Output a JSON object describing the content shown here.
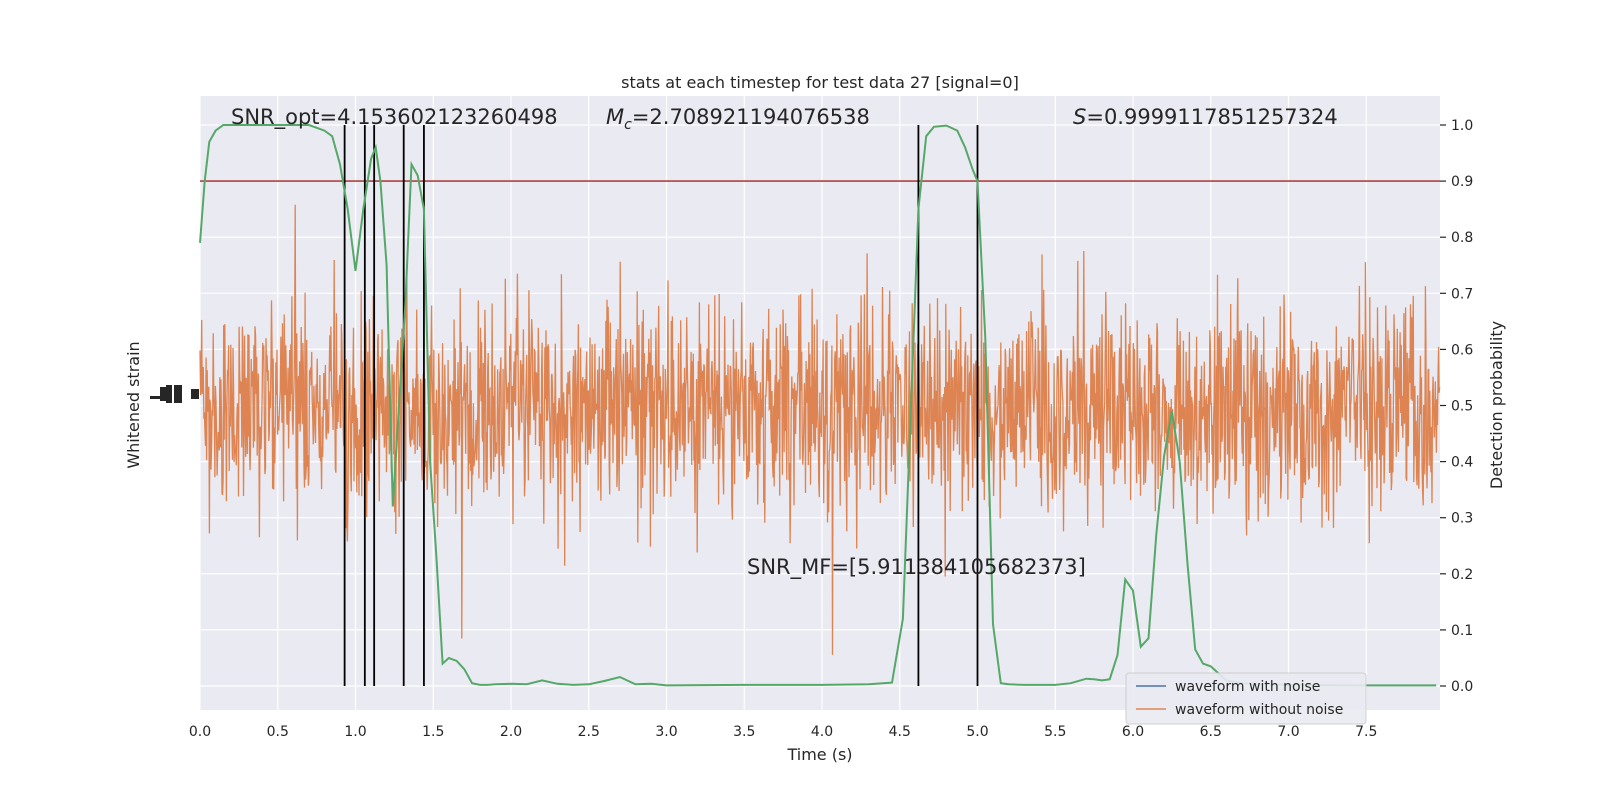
{
  "chart_data": {
    "type": "line",
    "title": "stats at each timestep for test data 27 [signal=0]",
    "xlabel": "Time (s)",
    "ylabel_left": "Whitened strain",
    "ylabel_right": "Detection probability",
    "xlim": [
      0.0,
      8.0
    ],
    "ylim_right": [
      -0.05,
      1.05
    ],
    "x_ticks": [
      "0.0",
      "0.5",
      "1.0",
      "1.5",
      "2.0",
      "2.5",
      "3.0",
      "3.5",
      "4.0",
      "4.5",
      "5.0",
      "5.5",
      "6.0",
      "6.5",
      "7.0",
      "7.5"
    ],
    "y_ticks_right": [
      "0.0",
      "0.1",
      "0.2",
      "0.3",
      "0.4",
      "0.5",
      "0.6",
      "0.7",
      "0.8",
      "0.9",
      "1.0"
    ],
    "grid": true,
    "annotations": {
      "snr_opt": "SNR_opt=4.153602123260498",
      "mc_symbol": "M",
      "mc_sub": "c",
      "mc_value": "=2.708921194076538",
      "s_symbol": "S",
      "s_value": "=0.9999117851257324",
      "snr_mf": "SNR_MF=[5.911384105682373]"
    },
    "threshold": {
      "value": 0.9,
      "color": "#b0413e"
    },
    "vertical_lines_x": [
      0.93,
      1.06,
      1.12,
      1.31,
      1.44,
      4.62,
      5.0
    ],
    "detection_probability": {
      "name": "Detection probability",
      "color": "#55a868",
      "x": [
        0.0,
        0.03,
        0.06,
        0.1,
        0.15,
        0.2,
        0.3,
        0.4,
        0.5,
        0.6,
        0.7,
        0.8,
        0.85,
        0.9,
        0.95,
        1.0,
        1.05,
        1.1,
        1.13,
        1.16,
        1.2,
        1.24,
        1.28,
        1.32,
        1.36,
        1.4,
        1.44,
        1.48,
        1.52,
        1.56,
        1.6,
        1.65,
        1.7,
        1.75,
        1.8,
        1.85,
        1.9,
        2.0,
        2.1,
        2.2,
        2.3,
        2.4,
        2.5,
        2.6,
        2.7,
        2.8,
        2.9,
        3.0,
        3.5,
        4.0,
        4.3,
        4.45,
        4.52,
        4.57,
        4.62,
        4.67,
        4.72,
        4.8,
        4.87,
        4.92,
        4.97,
        5.0,
        5.05,
        5.1,
        5.15,
        5.2,
        5.3,
        5.5,
        5.6,
        5.7,
        5.75,
        5.8,
        5.85,
        5.9,
        5.95,
        6.0,
        6.05,
        6.1,
        6.15,
        6.2,
        6.25,
        6.3,
        6.35,
        6.4,
        6.45,
        6.5,
        6.6,
        6.7,
        6.8,
        7.0,
        7.5,
        7.95
      ],
      "y": [
        0.79,
        0.9,
        0.97,
        0.99,
        1.0,
        1.0,
        1.0,
        1.0,
        1.0,
        1.0,
        1.0,
        0.99,
        0.98,
        0.93,
        0.85,
        0.74,
        0.85,
        0.94,
        0.96,
        0.9,
        0.75,
        0.32,
        0.5,
        0.68,
        0.93,
        0.91,
        0.85,
        0.4,
        0.23,
        0.04,
        0.05,
        0.045,
        0.03,
        0.005,
        0.002,
        0.002,
        0.003,
        0.004,
        0.003,
        0.01,
        0.004,
        0.002,
        0.003,
        0.009,
        0.016,
        0.003,
        0.004,
        0.001,
        0.002,
        0.002,
        0.003,
        0.006,
        0.12,
        0.48,
        0.85,
        0.98,
        0.997,
        0.999,
        0.99,
        0.96,
        0.92,
        0.9,
        0.62,
        0.11,
        0.005,
        0.003,
        0.002,
        0.002,
        0.005,
        0.013,
        0.012,
        0.01,
        0.012,
        0.055,
        0.19,
        0.17,
        0.07,
        0.085,
        0.27,
        0.41,
        0.49,
        0.4,
        0.22,
        0.065,
        0.04,
        0.035,
        0.01,
        0.005,
        0.004,
        0.002,
        0.001,
        0.001
      ]
    },
    "series": [
      {
        "name": "waveform with noise",
        "color": "#4c72b0"
      },
      {
        "name": "waveform without noise",
        "color": "#dd8452"
      }
    ]
  }
}
